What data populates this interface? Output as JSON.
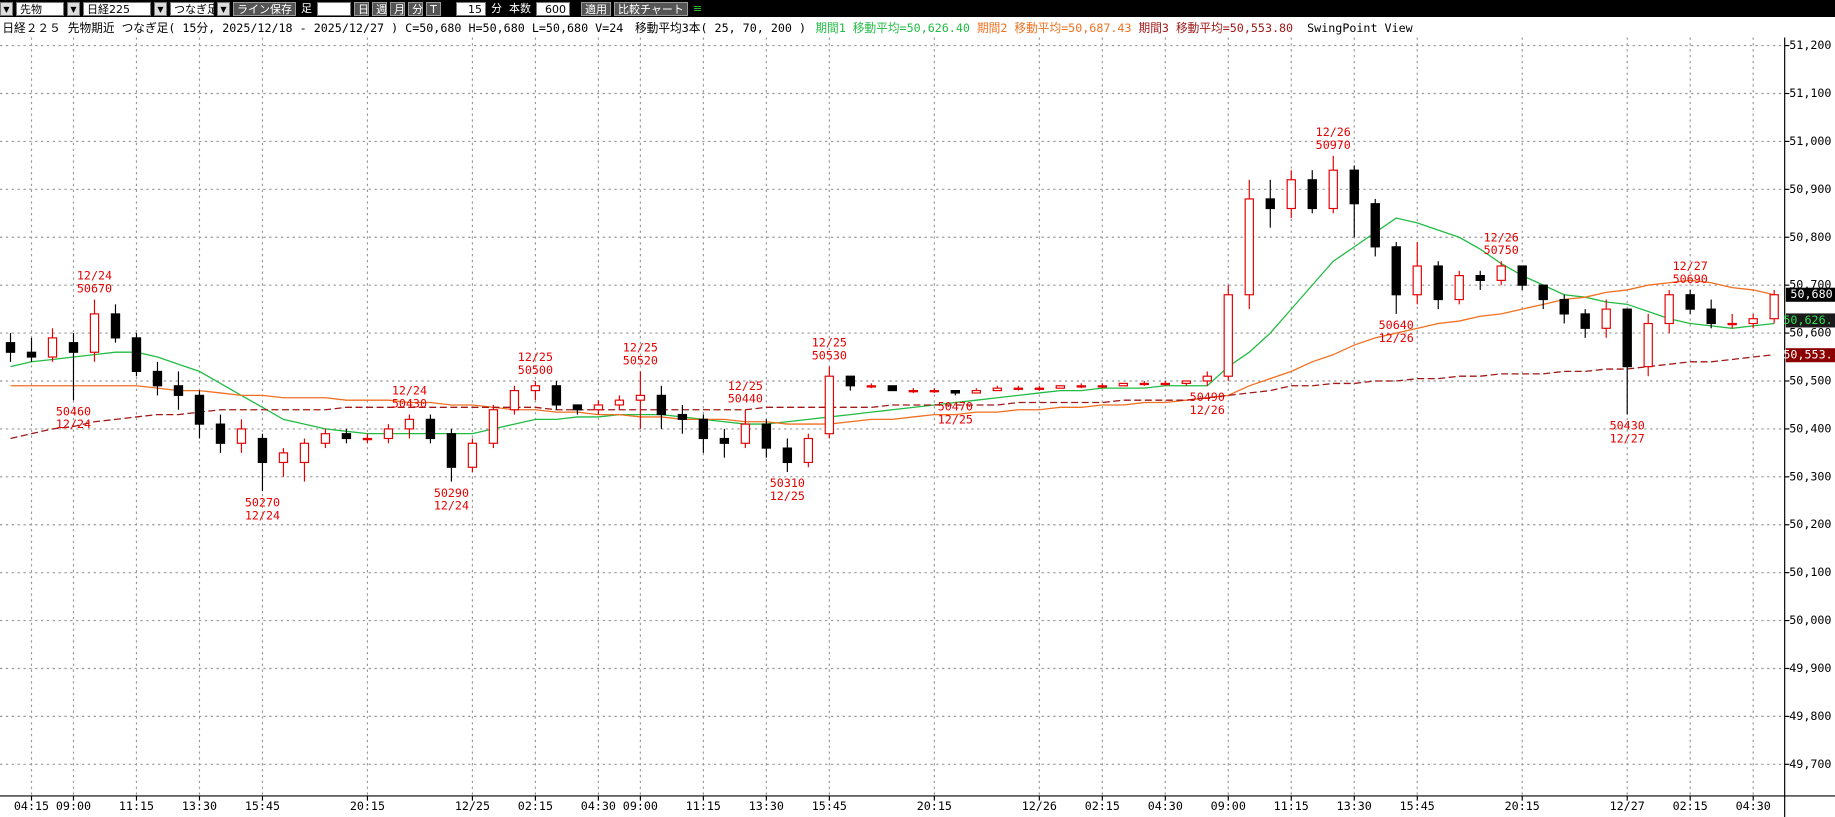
{
  "toolbar": {
    "market": "先物",
    "symbol": "日経225",
    "mode": "つなぎ足",
    "save_button": "ライン保存",
    "bar_label": "足",
    "periods": [
      "日",
      "週",
      "月",
      "分",
      "T"
    ],
    "interval": "15",
    "interval_unit": "分",
    "count_label": "本数",
    "count": "600",
    "apply": "適用",
    "compare": "比較チャート"
  },
  "chart_data": {
    "type": "candlestick",
    "title": "日経２２５ 先物期近 つなぎ足( 15分, 2025/12/18 - 2025/12/27 )",
    "ohlcv": "C=50,680 H=50,680 L=50,680 V=24",
    "ma_title": "移動平均3本( 25, 70, 200 )",
    "view_label": "SwingPoint View",
    "up_color": "#e60000",
    "down_color": "#000000",
    "grid": true,
    "ylim": [
      49634,
      51217
    ],
    "yticks": [
      {
        "value": 49700,
        "label": "49,700"
      },
      {
        "value": 49800,
        "label": "49,800"
      },
      {
        "value": 49900,
        "label": "49,900"
      },
      {
        "value": 50000,
        "label": "50,000"
      },
      {
        "value": 50100,
        "label": "50,100"
      },
      {
        "value": 50200,
        "label": "50,200"
      },
      {
        "value": 50300,
        "label": "50,300"
      },
      {
        "value": 50400,
        "label": "50,400"
      },
      {
        "value": 50500,
        "label": "50,500"
      },
      {
        "value": 50600,
        "label": "50,600"
      },
      {
        "value": 50700,
        "label": "50,700"
      },
      {
        "value": 50800,
        "label": "50,800"
      },
      {
        "value": 50900,
        "label": "50,900"
      },
      {
        "value": 51000,
        "label": "51,000"
      },
      {
        "value": 51100,
        "label": "51,100"
      },
      {
        "value": 51200,
        "label": "51,200"
      }
    ],
    "categories": [
      null,
      "04:15",
      null,
      "09:00",
      null,
      null,
      "11:15",
      null,
      null,
      "13:30",
      null,
      null,
      "15:45",
      null,
      null,
      null,
      null,
      "20:15",
      null,
      null,
      null,
      null,
      "12/25",
      null,
      null,
      "02:15",
      null,
      null,
      "04:30",
      null,
      "09:00",
      null,
      null,
      "11:15",
      null,
      null,
      "13:30",
      null,
      null,
      "15:45",
      null,
      null,
      null,
      null,
      "20:15",
      null,
      null,
      null,
      null,
      "12/26",
      null,
      null,
      "02:15",
      null,
      null,
      "04:30",
      null,
      null,
      "09:00",
      null,
      null,
      "11:15",
      null,
      null,
      "13:30",
      null,
      null,
      "15:45",
      null,
      null,
      null,
      null,
      "20:15",
      null,
      null,
      null,
      null,
      "12/27",
      null,
      null,
      "02:15",
      null,
      null,
      "04:30",
      null
    ],
    "open": [
      50580,
      50560,
      50550,
      50580,
      50560,
      50640,
      50590,
      50520,
      50490,
      50470,
      50410,
      50370,
      50380,
      50330,
      50330,
      50370,
      50390,
      50380,
      50380,
      50400,
      50420,
      50390,
      50320,
      50370,
      50440,
      50480,
      50490,
      50450,
      50440,
      50450,
      50460,
      50470,
      50430,
      50420,
      50380,
      50370,
      50410,
      50360,
      50330,
      50390,
      50510,
      50490,
      50490,
      50480,
      50480,
      50480,
      50475,
      50480,
      50485,
      50485,
      50485,
      50490,
      50490,
      50490,
      50495,
      50495,
      50495,
      50500,
      50510,
      50680,
      50880,
      50860,
      50920,
      50860,
      50940,
      50870,
      50780,
      50680,
      50740,
      50670,
      50720,
      50710,
      50740,
      50700,
      50670,
      50640,
      50610,
      50650,
      50530,
      50620,
      50680,
      50650,
      50620,
      50620,
      50630
    ],
    "high": [
      50600,
      50590,
      50610,
      50600,
      50670,
      50660,
      50600,
      50540,
      50520,
      50480,
      50430,
      50420,
      50390,
      50360,
      50380,
      50400,
      50400,
      50390,
      50410,
      50430,
      50430,
      50400,
      50380,
      50450,
      50490,
      50500,
      50500,
      50450,
      50460,
      50470,
      50520,
      50490,
      50450,
      50430,
      50400,
      50440,
      50420,
      50380,
      50390,
      50530,
      50510,
      50495,
      50490,
      50485,
      50485,
      50480,
      50485,
      50490,
      50490,
      50490,
      50490,
      50495,
      50495,
      50495,
      50500,
      50500,
      50500,
      50520,
      50700,
      50920,
      50920,
      50940,
      50940,
      50970,
      50950,
      50880,
      50790,
      50790,
      50750,
      50730,
      50730,
      50750,
      50740,
      50700,
      50680,
      50650,
      50670,
      50650,
      50640,
      50690,
      50690,
      50670,
      50640,
      50640,
      50690
    ],
    "low": [
      50540,
      50540,
      50540,
      50460,
      50540,
      50580,
      50510,
      50470,
      50440,
      50380,
      50350,
      50350,
      50270,
      50300,
      50290,
      50360,
      50370,
      50370,
      50370,
      50380,
      50370,
      50290,
      50310,
      50360,
      50430,
      50460,
      50440,
      50430,
      50430,
      50440,
      50400,
      50400,
      50390,
      50350,
      50340,
      50360,
      50340,
      50310,
      50320,
      50380,
      50480,
      50485,
      50480,
      50475,
      50475,
      50470,
      50475,
      50480,
      50480,
      50480,
      50485,
      50485,
      50485,
      50490,
      50490,
      50490,
      50490,
      50490,
      50500,
      50650,
      50820,
      50840,
      50850,
      50850,
      50800,
      50760,
      50640,
      50660,
      50650,
      50660,
      50690,
      50700,
      50690,
      50650,
      50620,
      50590,
      50590,
      50430,
      50510,
      50600,
      50640,
      50610,
      50610,
      50610,
      50620
    ],
    "close": [
      50560,
      50550,
      50590,
      50560,
      50640,
      50590,
      50520,
      50490,
      50470,
      50410,
      50370,
      50400,
      50330,
      50350,
      50370,
      50390,
      50380,
      50380,
      50400,
      50420,
      50380,
      50320,
      50370,
      50440,
      50480,
      50490,
      50450,
      50440,
      50450,
      50460,
      50470,
      50430,
      50420,
      50380,
      50370,
      50410,
      50360,
      50330,
      50380,
      50510,
      50490,
      50490,
      50480,
      50480,
      50480,
      50475,
      50480,
      50485,
      50485,
      50485,
      50490,
      50490,
      50490,
      50495,
      50495,
      50495,
      50500,
      50510,
      50680,
      50880,
      50860,
      50920,
      50860,
      50940,
      50870,
      50780,
      50680,
      50740,
      50670,
      50720,
      50710,
      50740,
      50700,
      50670,
      50640,
      50610,
      50650,
      50530,
      50620,
      50680,
      50650,
      50620,
      50620,
      50630,
      50680
    ],
    "series": [
      {
        "name": "期間1 移動平均=50,626.40",
        "color": "#22bb44",
        "dashed": false,
        "values": [
          50530,
          50540,
          50545,
          50550,
          50555,
          50560,
          50560,
          50550,
          50535,
          50520,
          50495,
          50470,
          50445,
          50420,
          50410,
          50400,
          50395,
          50390,
          50390,
          50390,
          50390,
          50390,
          50390,
          50400,
          50410,
          50420,
          50420,
          50425,
          50425,
          50430,
          50430,
          50430,
          50425,
          50420,
          50415,
          50410,
          50410,
          50415,
          50420,
          50425,
          50430,
          50435,
          50440,
          50445,
          50450,
          50455,
          50460,
          50465,
          50470,
          50475,
          50480,
          50480,
          50485,
          50485,
          50485,
          50490,
          50490,
          50490,
          50530,
          50560,
          50600,
          50650,
          50700,
          50750,
          50780,
          50810,
          50840,
          50830,
          50815,
          50800,
          50775,
          50745,
          50720,
          50700,
          50680,
          50675,
          50665,
          50660,
          50645,
          50630,
          50620,
          50615,
          50610,
          50615,
          50620
        ]
      },
      {
        "name": "期間2 移動平均=50,687.43",
        "color": "#f07020",
        "dashed": false,
        "values": [
          50490,
          50490,
          50490,
          50490,
          50490,
          50490,
          50490,
          50485,
          50480,
          50480,
          50475,
          50470,
          50470,
          50465,
          50465,
          50465,
          50460,
          50460,
          50460,
          50455,
          50455,
          50450,
          50450,
          50445,
          50440,
          50440,
          50435,
          50435,
          50430,
          50430,
          50425,
          50425,
          50420,
          50420,
          50420,
          50415,
          50415,
          50410,
          50410,
          50410,
          50415,
          50420,
          50420,
          50425,
          50430,
          50430,
          50435,
          50435,
          50440,
          50440,
          50445,
          50445,
          50450,
          50450,
          50455,
          50455,
          50460,
          50465,
          50470,
          50490,
          50505,
          50520,
          50540,
          50555,
          50575,
          50590,
          50600,
          50610,
          50620,
          50625,
          50635,
          50640,
          50650,
          50660,
          50670,
          50675,
          50685,
          50690,
          50700,
          50705,
          50710,
          50705,
          50695,
          50690,
          50680
        ]
      },
      {
        "name": "期間3 移動平均=50,553.80",
        "color": "#a01818",
        "dashed": true,
        "values": [
          50380,
          50390,
          50400,
          50405,
          50415,
          50420,
          50425,
          50430,
          50430,
          50435,
          50440,
          50440,
          50440,
          50440,
          50440,
          50440,
          50445,
          50445,
          50445,
          50445,
          50445,
          50445,
          50445,
          50445,
          50445,
          50445,
          50440,
          50440,
          50440,
          50440,
          50440,
          50440,
          50440,
          50440,
          50440,
          50440,
          50445,
          50445,
          50445,
          50445,
          50445,
          50445,
          50450,
          50450,
          50450,
          50450,
          50450,
          50450,
          50455,
          50455,
          50455,
          50455,
          50455,
          50460,
          50460,
          50460,
          50460,
          50465,
          50470,
          50475,
          50480,
          50490,
          50490,
          50495,
          50495,
          50500,
          50500,
          50505,
          50505,
          50510,
          50510,
          50515,
          50515,
          50515,
          50520,
          50520,
          50525,
          50525,
          50530,
          50535,
          50540,
          50540,
          50545,
          50550,
          50555
        ]
      }
    ],
    "swing_points": [
      {
        "date": "12/24",
        "price": 50460,
        "kind": "low",
        "candle": 3
      },
      {
        "date": "12/24",
        "price": 50670,
        "kind": "high",
        "candle": 4
      },
      {
        "date": "12/24",
        "price": 50270,
        "kind": "low",
        "candle": 12
      },
      {
        "date": "12/24",
        "price": 50430,
        "kind": "high",
        "candle": 19
      },
      {
        "date": "12/24",
        "price": 50290,
        "kind": "low",
        "candle": 21
      },
      {
        "date": "12/25",
        "price": 50500,
        "kind": "high",
        "candle": 25
      },
      {
        "date": "12/25",
        "price": 50520,
        "kind": "high",
        "candle": 30
      },
      {
        "date": "12/25",
        "price": 50440,
        "kind": "high",
        "candle": 35
      },
      {
        "date": "12/25",
        "price": 50310,
        "kind": "low",
        "candle": 37
      },
      {
        "date": "12/25",
        "price": 50530,
        "kind": "high",
        "candle": 39
      },
      {
        "date": "12/25",
        "price": 50470,
        "kind": "low",
        "candle": 45
      },
      {
        "date": "12/26",
        "price": 50490,
        "kind": "low",
        "candle": 57
      },
      {
        "date": "12/26",
        "price": 50970,
        "kind": "high",
        "candle": 63
      },
      {
        "date": "12/26",
        "price": 50640,
        "kind": "low",
        "candle": 66
      },
      {
        "date": "12/26",
        "price": 50750,
        "kind": "high",
        "candle": 71
      },
      {
        "date": "12/27",
        "price": 50430,
        "kind": "low",
        "candle": 77
      },
      {
        "date": "12/27",
        "price": 50690,
        "kind": "high",
        "candle": 80
      }
    ],
    "price_markers": [
      {
        "label": "50,680",
        "value": 50680,
        "color": "#000000",
        "text_color": "#ffffff"
      },
      {
        "label": "50,626.",
        "value": 50626.4,
        "color": "#1a1a1a",
        "text_color": "#33dd55"
      },
      {
        "label": "50,553.",
        "value": 50553.8,
        "color": "#8b0000",
        "text_color": "#ffffff"
      }
    ]
  }
}
